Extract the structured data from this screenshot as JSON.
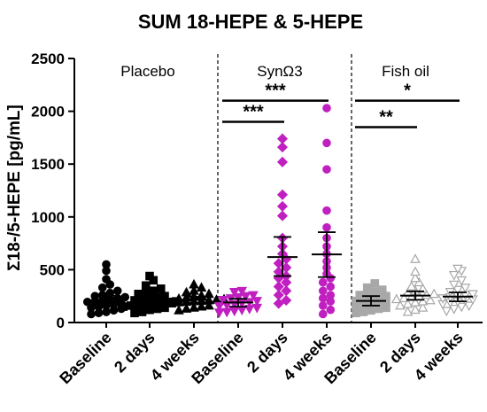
{
  "chart_data": {
    "type": "scatter",
    "title": "SUM 18-HEPE & 5-HEPE",
    "ylabel": "Σ18-/5-HEPE [pg/mL]",
    "xlabel": "",
    "ylim": [
      0,
      2500
    ],
    "yticks": [
      0,
      500,
      1000,
      1500,
      2000,
      2500
    ],
    "categories": [
      "Baseline",
      "2 days",
      "4 weeks",
      "Baseline",
      "2 days",
      "4 weeks",
      "Baseline",
      "2 days",
      "4 weeks"
    ],
    "group_labels": [
      "Placebo",
      "SynΩ3",
      "Fish oil"
    ],
    "colors": {
      "placebo": "#000000",
      "syn": "#c020c0",
      "fish": "#a8a8a8"
    },
    "series": [
      {
        "group": "Placebo",
        "timepoint": "Baseline",
        "marker": "circle",
        "filled": true,
        "mean": 210,
        "ci": [
          165,
          255
        ],
        "values": [
          550,
          490,
          410,
          360,
          330,
          300,
          280,
          260,
          250,
          240,
          230,
          220,
          210,
          200,
          195,
          180,
          170,
          160,
          150,
          140,
          130,
          115,
          100,
          90,
          80
        ]
      },
      {
        "group": "Placebo",
        "timepoint": "2 days",
        "marker": "square",
        "filled": true,
        "mean": 200,
        "ci": [
          165,
          240
        ],
        "values": [
          440,
          400,
          350,
          320,
          300,
          280,
          270,
          250,
          240,
          230,
          220,
          210,
          200,
          195,
          190,
          180,
          170,
          165,
          160,
          150,
          140,
          130,
          120,
          100,
          90
        ]
      },
      {
        "group": "Placebo",
        "timepoint": "4 weeks",
        "marker": "triangle",
        "filled": true,
        "mean": 215,
        "ci": [
          185,
          245
        ],
        "values": [
          360,
          330,
          300,
          285,
          270,
          255,
          245,
          235,
          225,
          220,
          215,
          210,
          205,
          200,
          195,
          190,
          180,
          170,
          160,
          150,
          140,
          130,
          115
        ]
      },
      {
        "group": "SynΩ3",
        "timepoint": "Baseline",
        "marker": "triangle-down",
        "filled": true,
        "mean": 190,
        "ci": [
          150,
          225
        ],
        "values": [
          300,
          290,
          260,
          250,
          240,
          230,
          215,
          205,
          195,
          185,
          175,
          165,
          155,
          140,
          130,
          120,
          110,
          100,
          95
        ]
      },
      {
        "group": "SynΩ3",
        "timepoint": "2 days",
        "marker": "diamond",
        "filled": true,
        "mean": 620,
        "ci": [
          440,
          810
        ],
        "values": [
          1740,
          1660,
          1520,
          1210,
          1100,
          1010,
          800,
          720,
          650,
          600,
          560,
          520,
          480,
          440,
          420,
          380,
          340,
          300,
          260,
          210,
          180
        ]
      },
      {
        "group": "SynΩ3",
        "timepoint": "4 weeks",
        "marker": "circle",
        "filled": true,
        "mean": 645,
        "ci": [
          430,
          855
        ],
        "values": [
          2030,
          1700,
          1450,
          1060,
          900,
          800,
          720,
          650,
          580,
          520,
          460,
          420,
          380,
          340,
          300,
          260,
          230,
          200,
          160,
          120,
          80
        ]
      },
      {
        "group": "Fish oil",
        "timepoint": "Baseline",
        "marker": "square",
        "filled": true,
        "mean": 205,
        "ci": [
          160,
          250
        ],
        "values": [
          370,
          330,
          310,
          290,
          270,
          260,
          250,
          240,
          225,
          215,
          205,
          195,
          185,
          175,
          165,
          150,
          140,
          130,
          115,
          100,
          90
        ]
      },
      {
        "group": "Fish oil",
        "timepoint": "2 days",
        "marker": "triangle",
        "filled": false,
        "mean": 255,
        "ci": [
          215,
          295
        ],
        "values": [
          600,
          480,
          420,
          380,
          340,
          320,
          300,
          280,
          270,
          260,
          250,
          240,
          230,
          220,
          210,
          200,
          190,
          175,
          160,
          140,
          120,
          100
        ]
      },
      {
        "group": "Fish oil",
        "timepoint": "4 weeks",
        "marker": "triangle-down",
        "filled": false,
        "mean": 245,
        "ci": [
          200,
          285
        ],
        "values": [
          510,
          490,
          450,
          400,
          360,
          330,
          310,
          290,
          270,
          260,
          250,
          240,
          230,
          220,
          210,
          200,
          190,
          175,
          160,
          150,
          130,
          110
        ]
      }
    ],
    "significance": [
      {
        "from": 3,
        "to": 4,
        "y": 1900,
        "label": "***"
      },
      {
        "from": 3,
        "to": 5,
        "y": 2100,
        "label": "***"
      },
      {
        "from": 6,
        "to": 7,
        "y": 1850,
        "label": "**"
      },
      {
        "from": 6,
        "to": 8,
        "y": 2100,
        "label": "*"
      }
    ],
    "grid": false
  }
}
